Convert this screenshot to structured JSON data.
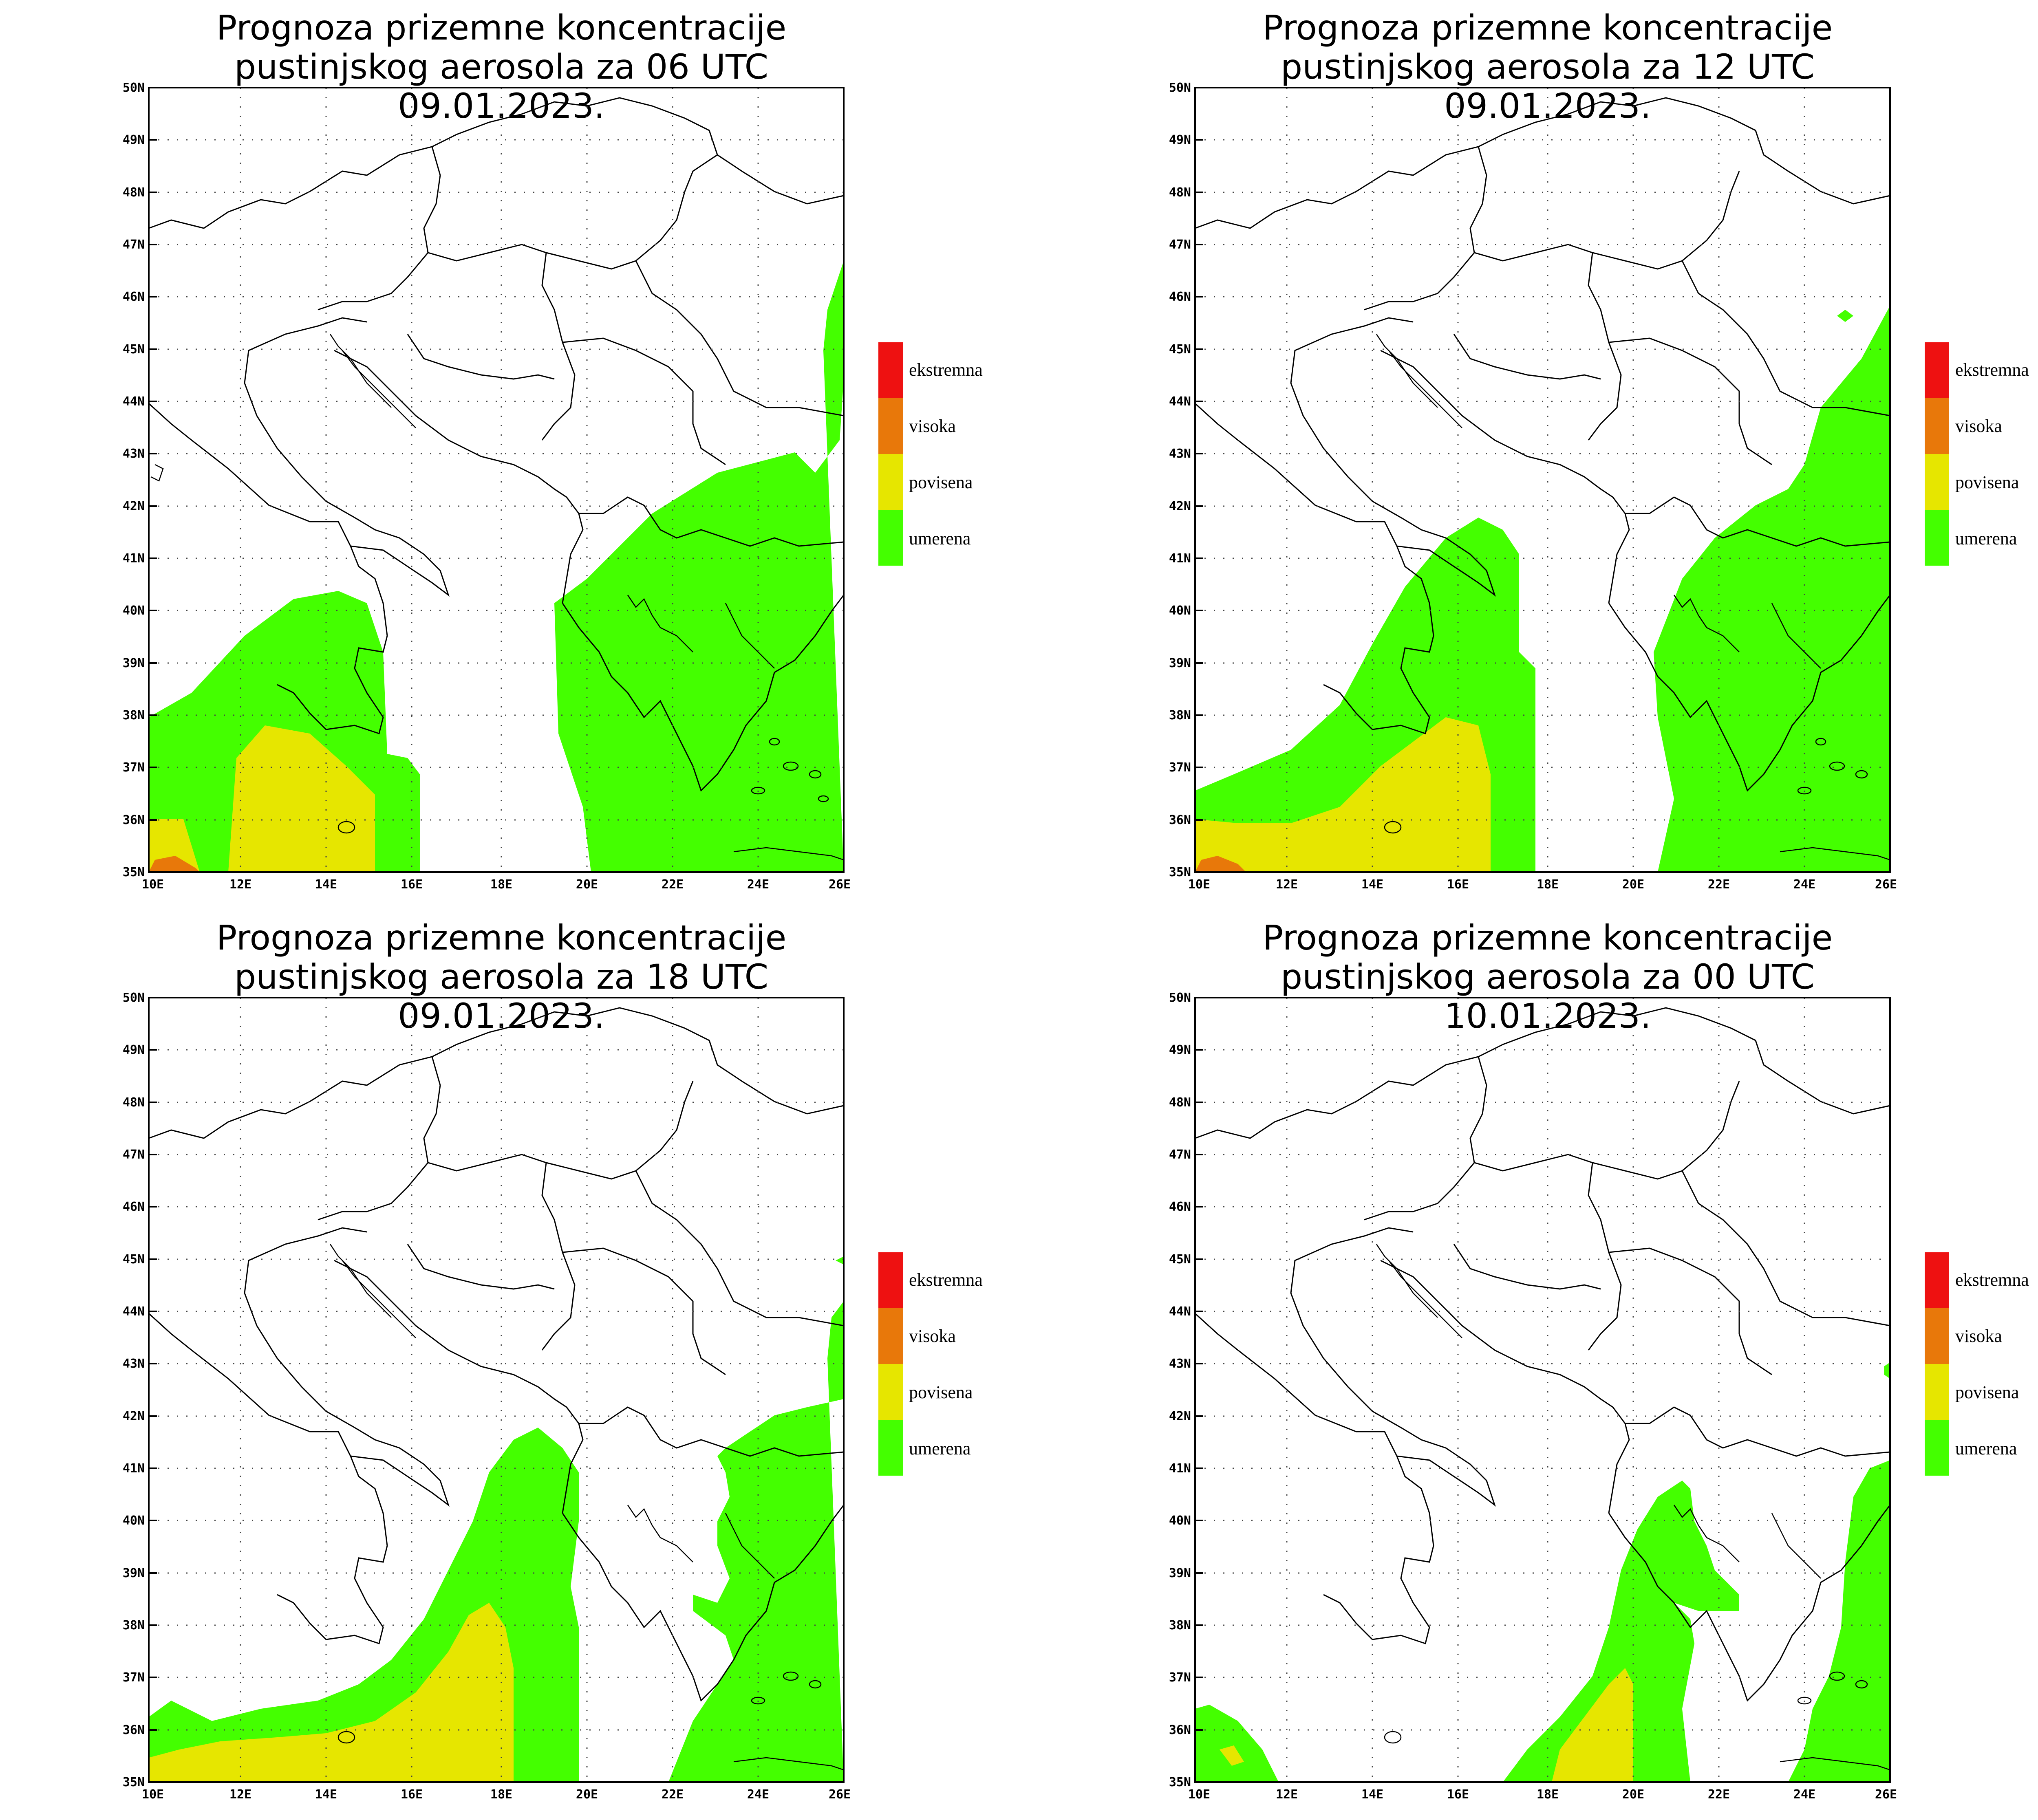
{
  "panels": [
    {
      "id": "p1",
      "title_line1": "Prognoza prizemne koncentracije",
      "title_line2": "pustinjskog aerosola za 06 UTC 09.01.2023."
    },
    {
      "id": "p2",
      "title_line1": "Prognoza prizemne koncentracije",
      "title_line2": "pustinjskog aerosola za 12 UTC 09.01.2023."
    },
    {
      "id": "p3",
      "title_line1": "Prognoza prizemne koncentracije",
      "title_line2": "pustinjskog aerosola za 18 UTC 09.01.2023."
    },
    {
      "id": "p4",
      "title_line1": "Prognoza prizemne koncentracije",
      "title_line2": "pustinjskog aerosola za 00 UTC 10.01.2023."
    }
  ],
  "axes": {
    "lat_labels": [
      "35N",
      "36N",
      "37N",
      "38N",
      "39N",
      "40N",
      "41N",
      "42N",
      "43N",
      "44N",
      "45N",
      "46N",
      "47N",
      "48N",
      "49N",
      "50N"
    ],
    "lon_labels": [
      "10E",
      "12E",
      "14E",
      "16E",
      "18E",
      "20E",
      "22E",
      "24E",
      "26E"
    ]
  },
  "legend": [
    {
      "label": "ekstremna",
      "color": "#ee1111"
    },
    {
      "label": "visoka",
      "color": "#e8780a"
    },
    {
      "label": "povisena",
      "color": "#e6e600"
    },
    {
      "label": "umerena",
      "color": "#44ff00"
    }
  ],
  "colors": {
    "umerena": "#44ff00",
    "povisena": "#e6e600",
    "visoka": "#e8780a",
    "ekstremna": "#ee1111"
  }
}
